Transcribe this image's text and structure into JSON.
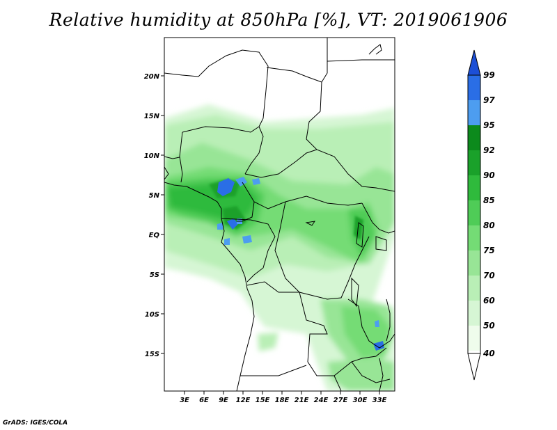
{
  "title": "Relative humidity at 850hPa [%], VT: 2019061906",
  "footer": "GrADS: IGES/COLA",
  "lat_ticks": [
    "20N",
    "15N",
    "10N",
    "5N",
    "EQ",
    "5S",
    "10S",
    "15S"
  ],
  "lon_ticks": [
    "3E",
    "6E",
    "9E",
    "12E",
    "15E",
    "18E",
    "21E",
    "24E",
    "27E",
    "30E",
    "33E"
  ],
  "colorbar": {
    "labels": [
      "99",
      "97",
      "95",
      "92",
      "90",
      "85",
      "80",
      "75",
      "70",
      "60",
      "50",
      "40"
    ],
    "colors": [
      "#1c4fd6",
      "#2a6ee6",
      "#4d9df0",
      "#0c8a1c",
      "#1aa12a",
      "#2fba3c",
      "#4fcc57",
      "#74dc75",
      "#98e596",
      "#b9efb6",
      "#d6f6d4",
      "#effcec"
    ]
  }
}
